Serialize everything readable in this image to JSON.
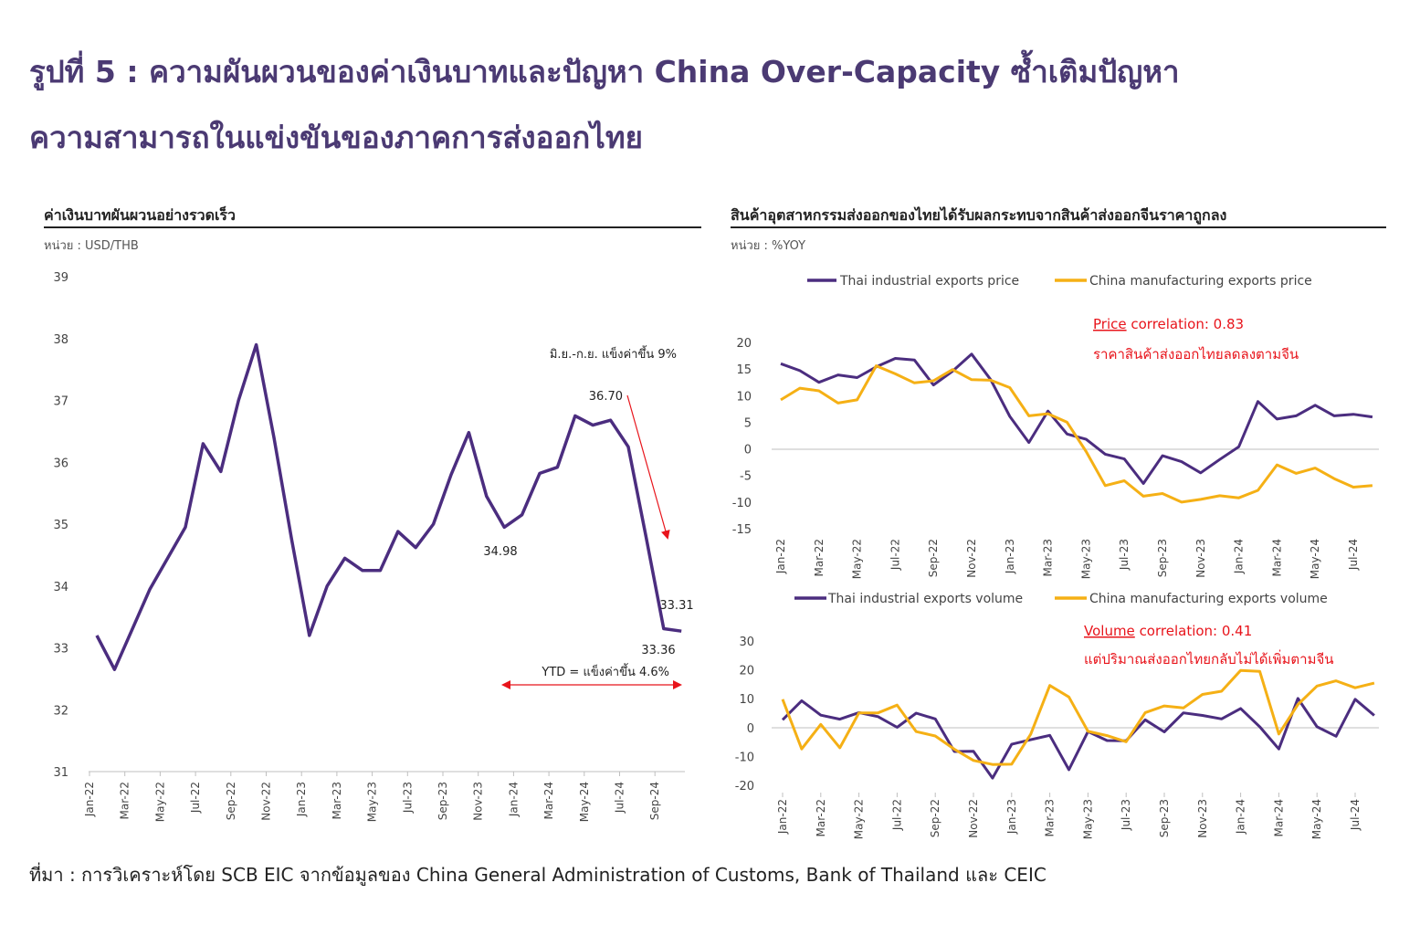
{
  "title_line1": "รูปที่ 5 : ความผันผวนของค่าเงินบาทและปัญหา China Over-Capacity ซ้ำเติมปัญหา",
  "title_line2": "ความสามารถในแข่งขันของภาคการส่งออกไทย",
  "source": "ที่มา : การวิเคราะห์โดย SCB EIC จากข้อมูลของ China General Administration of Customs, Bank of Thailand และ CEIC",
  "colors": {
    "purple": "#4b2d7f",
    "orange": "#f5b015",
    "red": "#e8141b"
  },
  "chart_data": [
    {
      "type": "line",
      "panel_title": "ค่าเงินบาทผันผวนอย่างรวดเร็ว",
      "unit": "หน่วย : USD/THB",
      "ylim": [
        31,
        39
      ],
      "yticks": [
        31,
        32,
        33,
        34,
        35,
        36,
        37,
        38,
        39
      ],
      "xticks": [
        "Jan-22",
        "Mar-22",
        "May-22",
        "Jul-22",
        "Sep-22",
        "Nov-22",
        "Jan-23",
        "Mar-23",
        "May-23",
        "Jul-23",
        "Sep-23",
        "Nov-23",
        "Jan-24",
        "Mar-24",
        "May-24",
        "Jul-24",
        "Sep-24"
      ],
      "series": [
        {
          "name": "USD/THB",
          "color": "#4b2d7f",
          "values": [
            33.2,
            32.65,
            33.3,
            33.95,
            34.45,
            34.95,
            36.3,
            35.85,
            37.0,
            37.9,
            36.4,
            34.75,
            33.2,
            34.0,
            34.45,
            34.25,
            34.25,
            34.88,
            34.62,
            35.0,
            35.8,
            36.48,
            35.45,
            34.95,
            35.15,
            35.82,
            35.92,
            36.75,
            36.6,
            36.68,
            36.25,
            34.8,
            33.31,
            33.27
          ]
        }
      ],
      "annotations": {
        "note_jun_sep": "มิ.ย.-ก.ย. แข็งค่าขึ้น 9%",
        "label_peak": "36.70",
        "label_trough": "34.98",
        "label_end_1": "33.31",
        "label_end_2": "33.36",
        "ytd_note": "YTD = แข็งค่าขึ้น 4.6%"
      }
    },
    {
      "type": "line",
      "panel_title": "สินค้าอุตสาหกรรมส่งออกของไทยได้รับผลกระทบจากสินค้าส่งออกจีนราคาถูกลง",
      "unit": "หน่วย : %YOY",
      "ylim": [
        -15,
        20
      ],
      "yticks": [
        20,
        15,
        10,
        5,
        0,
        -5,
        -10,
        -15
      ],
      "xticks": [
        "Jan-22",
        "Mar-22",
        "May-22",
        "Jul-22",
        "Sep-22",
        "Nov-22",
        "Jan-23",
        "Mar-23",
        "May-23",
        "Jul-23",
        "Sep-23",
        "Nov-23",
        "Jan-24",
        "Mar-24",
        "May-24",
        "Jul-24"
      ],
      "series": [
        {
          "name": "Thai industrial exports price",
          "color": "#4b2d7f",
          "values": [
            16,
            14.7,
            12.5,
            13.9,
            13.4,
            15.4,
            17,
            16.7,
            12,
            14.6,
            17.8,
            13,
            6.1,
            1.2,
            7.1,
            2.8,
            1.8,
            -1,
            -1.9,
            -6.5,
            -1.3,
            -2.4,
            -4.5,
            -2,
            0.4,
            8.9,
            5.6,
            6.2,
            8.2,
            6.2,
            6.5,
            6
          ]
        },
        {
          "name": "China manufacturing exports price",
          "color": "#f5b015",
          "values": [
            9.2,
            11.4,
            10.9,
            8.6,
            9.2,
            15.6,
            14.1,
            12.4,
            12.8,
            14.9,
            13,
            12.9,
            11.5,
            6.2,
            6.6,
            5,
            -0.5,
            -6.9,
            -6,
            -8.9,
            -8.4,
            -10,
            -9.5,
            -8.8,
            -9.2,
            -7.8,
            -3,
            -4.6,
            -3.6,
            -5.6,
            -7.2,
            -6.9
          ]
        }
      ],
      "correlation_label": "Price",
      "correlation_text": " correlation: 0.83",
      "note": "ราคาสินค้าส่งออกไทยลดลงตามจีน"
    },
    {
      "type": "line",
      "ylim": [
        -20,
        30
      ],
      "yticks": [
        30,
        20,
        10,
        0,
        -10,
        -20
      ],
      "xticks": [
        "Jan-22",
        "Mar-22",
        "May-22",
        "Jul-22",
        "Sep-22",
        "Nov-22",
        "Jan-23",
        "Mar-23",
        "May-23",
        "Jul-23",
        "Sep-23",
        "Nov-23",
        "Jan-24",
        "Mar-24",
        "May-24",
        "Jul-24"
      ],
      "series": [
        {
          "name": "Thai industrial exports volume",
          "color": "#4b2d7f",
          "values": [
            2.7,
            9.3,
            4.3,
            2.9,
            5.2,
            3.8,
            0.1,
            5,
            3,
            -8.3,
            -8.2,
            -17.5,
            -5.8,
            -4.2,
            -2.7,
            -14.6,
            -1.4,
            -4.5,
            -4.6,
            2.7,
            -1.5,
            5.1,
            4.2,
            3,
            6.6,
            0.3,
            -7.4,
            10.1,
            0.3,
            -3,
            9.8,
            4.2
          ]
        },
        {
          "name": "China manufacturing exports volume",
          "color": "#f5b015",
          "values": [
            9.8,
            -7.4,
            1.1,
            -7,
            5.1,
            5.1,
            7.8,
            -1.4,
            -2.9,
            -7.5,
            -11.4,
            -12.8,
            -12.7,
            -2.3,
            14.6,
            10.6,
            -1.3,
            -2.8,
            -4.9,
            5.2,
            7.5,
            6.8,
            11.5,
            12.6,
            19.8,
            19.5,
            -2.2,
            8,
            14.4,
            16.2,
            13.8,
            15.4
          ]
        }
      ],
      "correlation_label": "Volume",
      "correlation_text": " correlation: 0.41",
      "note": "แต่ปริมาณส่งออกไทยกลับไม่ได้เพิ่มตามจีน"
    }
  ]
}
